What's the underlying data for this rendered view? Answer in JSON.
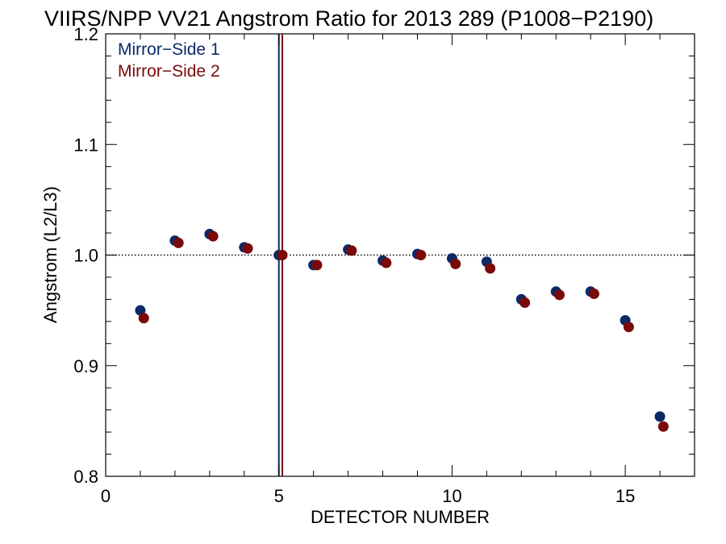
{
  "chart_data": {
    "type": "scatter",
    "title": "VIIRS/NPP VV21 Angstrom Ratio for 2013 289 (P1008−P2190)",
    "xlabel": "DETECTOR NUMBER",
    "ylabel": "Angstrom (L2/L3)",
    "xlim": [
      0,
      17
    ],
    "ylim": [
      0.8,
      1.2
    ],
    "x_ticks": [
      "0",
      "5",
      "10",
      "15"
    ],
    "y_ticks": [
      "0.8",
      "0.9",
      "1.0",
      "1.1",
      "1.2"
    ],
    "reference_line_y": 1.0,
    "vertical_lines": [
      {
        "x": 5.0,
        "color": "#0d2a66"
      },
      {
        "x": 5.1,
        "color": "#7a0a0a"
      }
    ],
    "legend_position": "top-left",
    "series": [
      {
        "name": "Mirror−Side 1",
        "color": "#0d2a66",
        "x": [
          1,
          2,
          3,
          4,
          5,
          6,
          7,
          8,
          9,
          10,
          11,
          12,
          13,
          14,
          15,
          16
        ],
        "y": [
          0.95,
          1.013,
          1.019,
          1.007,
          1.0,
          0.991,
          1.005,
          0.995,
          1.001,
          0.997,
          0.994,
          0.96,
          0.967,
          0.967,
          0.941,
          0.854
        ]
      },
      {
        "name": "Mirror−Side 2",
        "color": "#7a0a0a",
        "x": [
          1.1,
          2.1,
          3.1,
          4.1,
          5.1,
          6.1,
          7.1,
          8.1,
          9.1,
          10.1,
          11.1,
          12.1,
          13.1,
          14.1,
          15.1,
          16.1
        ],
        "y": [
          0.943,
          1.011,
          1.017,
          1.006,
          1.0,
          0.991,
          1.004,
          0.993,
          1.0,
          0.992,
          0.988,
          0.957,
          0.964,
          0.965,
          0.935,
          0.845
        ]
      }
    ]
  }
}
